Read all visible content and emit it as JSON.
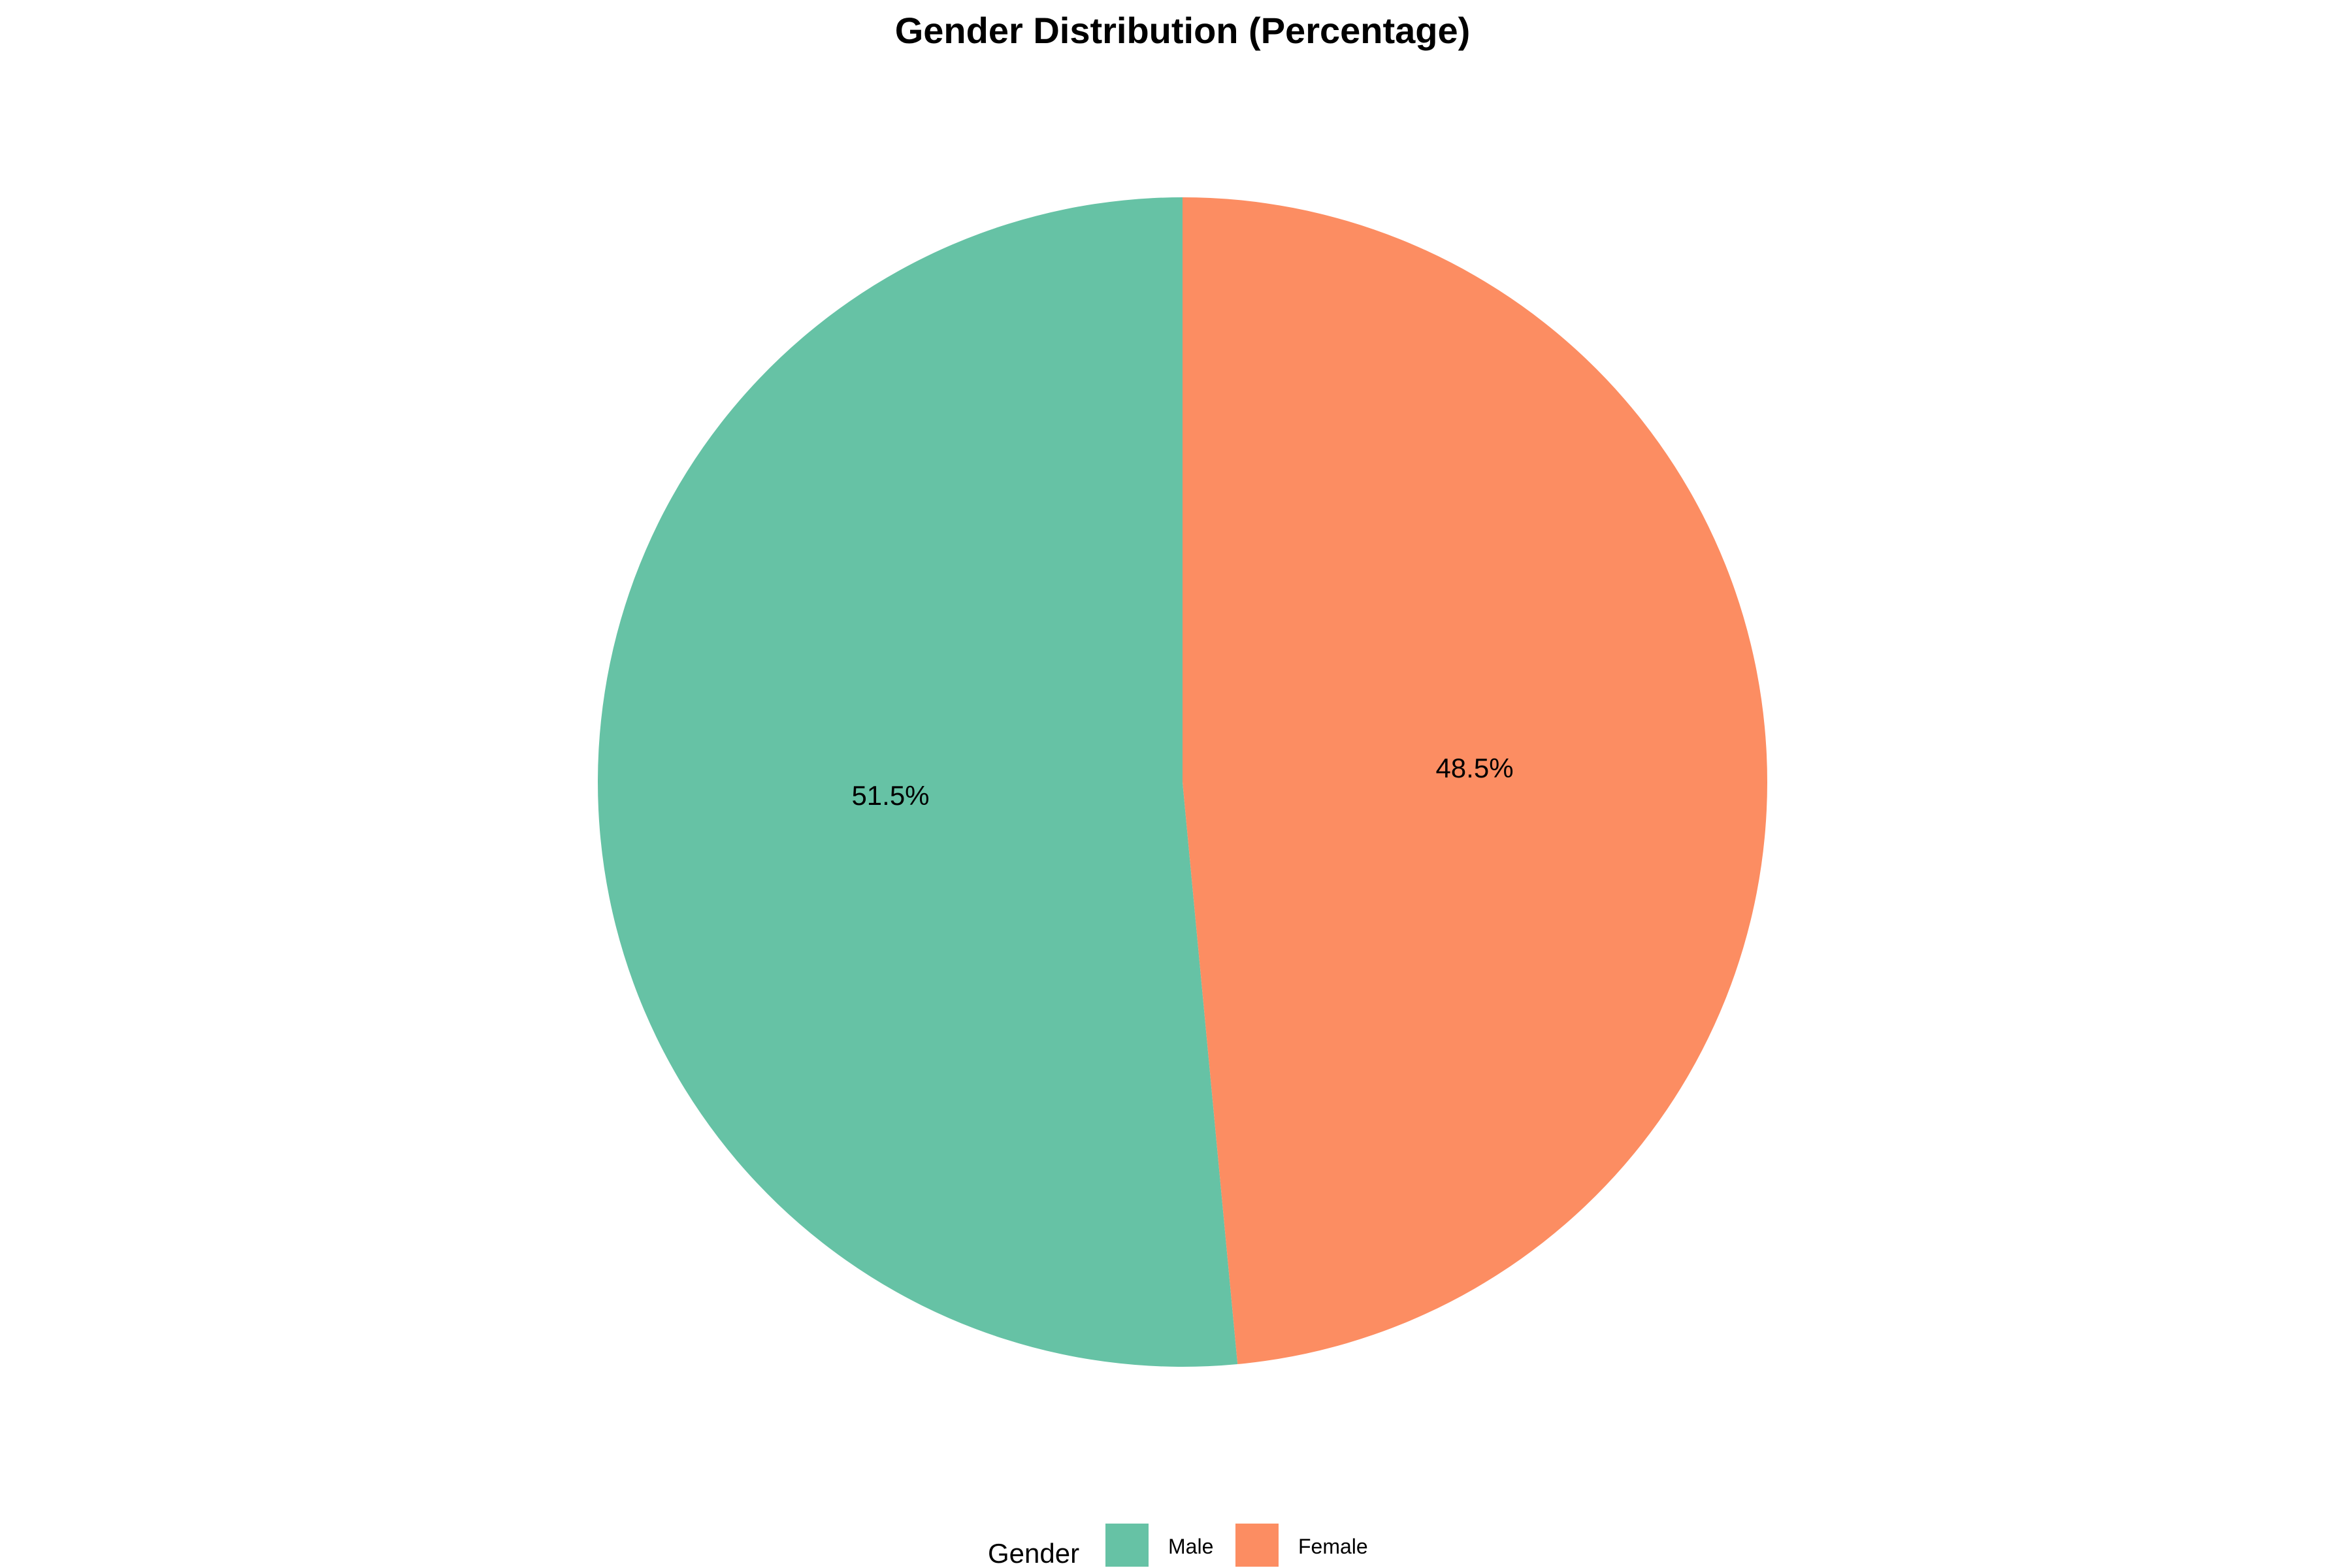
{
  "chart_data": {
    "type": "pie",
    "title": "Gender Distribution (Percentage)",
    "categories": [
      "Male",
      "Female"
    ],
    "values": [
      51.5,
      48.5
    ],
    "labels": [
      "51.5%",
      "48.5%"
    ],
    "colors": [
      "#66c2a5",
      "#fc8d62"
    ],
    "start_direction": "top",
    "direction": "counterclockwise",
    "legend": {
      "title": "Gender",
      "position": "bottom",
      "entries": [
        "Male",
        "Female"
      ]
    }
  }
}
